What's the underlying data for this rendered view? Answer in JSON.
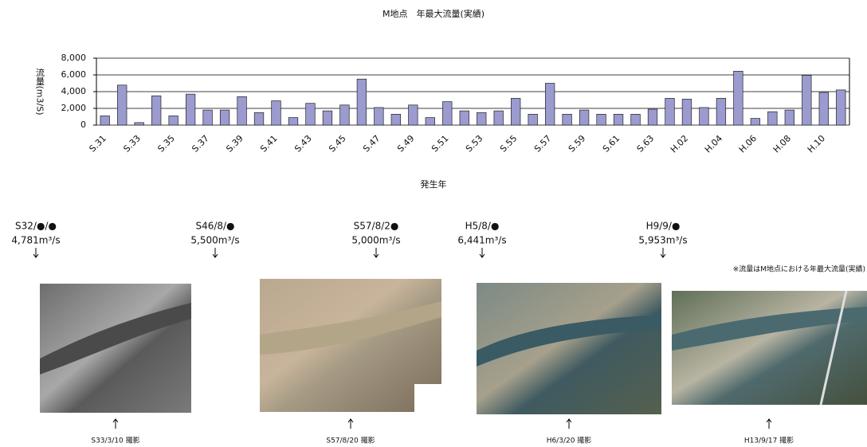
{
  "chart_data": {
    "type": "bar",
    "title": "M地点　年最大流量(実績)",
    "x_label": "発生年",
    "y_label": "流量(m3/S)",
    "categories": [
      "S.31",
      null,
      "S.33",
      null,
      "S.35",
      null,
      "S.37",
      null,
      "S.39",
      null,
      "S.41",
      null,
      "S.43",
      null,
      "S.45",
      null,
      "S.47",
      null,
      "S.49",
      null,
      "S.51",
      null,
      "S.53",
      null,
      "S.55",
      null,
      "S.57",
      null,
      "S.59",
      null,
      "S.61",
      null,
      "S.63",
      null,
      "H.02",
      null,
      "H.04",
      null,
      "H.06",
      null,
      "H.08",
      null,
      "H.10",
      null
    ],
    "values": [
      1100,
      4781,
      300,
      3500,
      1100,
      3700,
      1800,
      1800,
      3400,
      1500,
      2900,
      900,
      2600,
      1700,
      2400,
      5500,
      2100,
      1300,
      2400,
      900,
      2800,
      1700,
      1500,
      1700,
      3200,
      1300,
      5000,
      1300,
      1800,
      1300,
      1300,
      1300,
      1900,
      3200,
      3100,
      2100,
      3200,
      6441,
      800,
      1600,
      1800,
      5953,
      3900,
      4200
    ],
    "color": "#9b9bd0",
    "ylim": [
      0,
      8000
    ],
    "yticks": [
      0,
      {
        "value": 2000,
        "label": "2,000"
      },
      {
        "value": 4000,
        "label": "4,000"
      },
      {
        "value": 6000,
        "label": "6,000"
      },
      {
        "value": 8000,
        "label": "8,000"
      }
    ],
    "grid": true
  },
  "annotations": [
    {
      "event": "S32/●/●",
      "flow": "4,781m³/s"
    },
    {
      "event": "S46/8/●",
      "flow": "5,500m³/s"
    },
    {
      "event": "S57/8/2●",
      "flow": "5,000m³/s"
    },
    {
      "event": "H5/8/●",
      "flow": "6,441m³/s"
    },
    {
      "event": "H9/9/●",
      "flow": "5,953m³/s"
    }
  ],
  "note": "※流量はM地点における年最大流量(実績)",
  "photos": [
    {
      "caption": "S33/3/10 撮影"
    },
    {
      "caption": "S57/8/20 撮影"
    },
    {
      "caption": "H6/3/20 撮影"
    },
    {
      "caption": "H13/9/17 撮影"
    }
  ]
}
